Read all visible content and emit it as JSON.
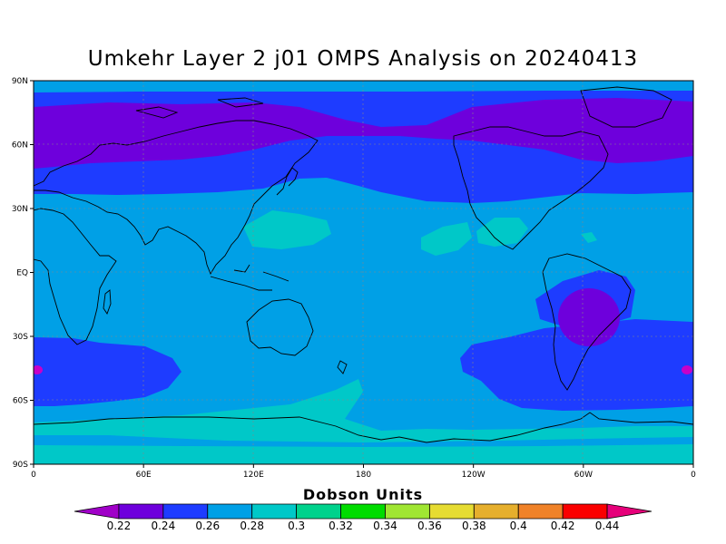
{
  "title": "Umkehr Layer 2 j01 OMPS Analysis on 20240413",
  "map": {
    "projection": "cylindrical",
    "lon_range": [
      0,
      360
    ],
    "lat_range": [
      -90,
      90
    ],
    "x_ticks": [
      "0",
      "60E",
      "120E",
      "180",
      "120W",
      "60W",
      "0"
    ],
    "y_ticks": [
      "90N",
      "60N",
      "30N",
      "EQ",
      "30S",
      "60S",
      "90S"
    ],
    "grid": "dotted"
  },
  "colorbar": {
    "title": "Dobson Units",
    "labels": [
      "0.22",
      "0.24",
      "0.26",
      "0.28",
      "0.3",
      "0.32",
      "0.34",
      "0.36",
      "0.38",
      "0.4",
      "0.42",
      "0.44"
    ],
    "colors": [
      "#a000c8",
      "#6e00dc",
      "#1e3cff",
      "#00a0e6",
      "#00c8c8",
      "#00d28c",
      "#00dc00",
      "#a0e632",
      "#e6dc32",
      "#e6af2d",
      "#f08228",
      "#fa0000",
      "#e6007a"
    ]
  },
  "field_colors": {
    "ocean_default": "#00a0e6",
    "band_0_22": "#6e00dc",
    "band_0_26": "#1e3cff",
    "band_0_28": "#00a0e6",
    "band_0_30": "#00c8c8",
    "coast": "#000000"
  }
}
